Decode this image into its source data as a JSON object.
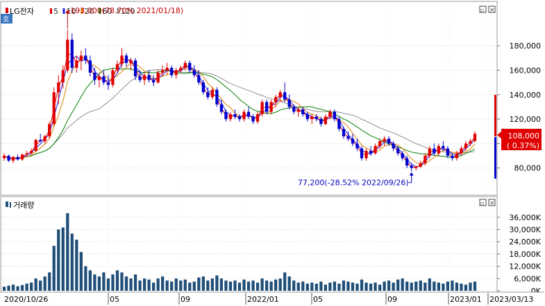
{
  "price_panel": {
    "stock_name": "LG전자",
    "ma_legend": [
      {
        "label": "5",
        "color": "#e00000"
      },
      {
        "label": "10",
        "color": "#2020e0"
      },
      {
        "label": "20",
        "color": "#e08000"
      },
      {
        "label": "60",
        "color": "#008000"
      },
      {
        "label": "120",
        "color": "#909090"
      }
    ],
    "side_tab": "호",
    "current_price": "108,000",
    "current_change": "( 0.37%)",
    "high_annotation": "193,000(78.70% 2021/01/18)",
    "low_annotation": "77,200(-28.52% 2022/09/26)"
  },
  "volume_panel": {
    "title": "거래량"
  },
  "window_buttons": {
    "restore": "▫",
    "close": "×"
  },
  "colors": {
    "up": "#e00000",
    "down": "#0000d0",
    "ma5": "#e00000",
    "ma10": "#2020e0",
    "ma20": "#e08000",
    "ma60": "#008000",
    "ma120": "#909090",
    "volume": "#1f4e79"
  },
  "chart_data": {
    "type": "candlestick",
    "x_tick_labels": [
      "2020/10/26",
      "05",
      "09",
      "2022/01",
      "05",
      "09",
      "2023/01",
      "2023/03/13"
    ],
    "price_axis": {
      "ticks": [
        "80,000",
        "100,000",
        "120,000",
        "140,000",
        "160,000",
        "180,000"
      ],
      "ylim": [
        60000,
        205000
      ]
    },
    "volume_axis": {
      "ticks": [
        "0K",
        "6,000K",
        "12,000K",
        "18,000K",
        "24,000K",
        "30,000K",
        "36,000K"
      ],
      "ylim": [
        0,
        40000000
      ]
    },
    "candles": [
      [
        88000,
        92000,
        86000,
        90000
      ],
      [
        90000,
        91000,
        85000,
        86000
      ],
      [
        86000,
        90000,
        84000,
        89000
      ],
      [
        89000,
        91000,
        86000,
        87000
      ],
      [
        87000,
        92000,
        86000,
        91000
      ],
      [
        91000,
        94000,
        90000,
        92000
      ],
      [
        92000,
        96000,
        91000,
        94000
      ],
      [
        94000,
        104000,
        93000,
        103000
      ],
      [
        103000,
        108000,
        101000,
        102000
      ],
      [
        102000,
        107000,
        100000,
        106000
      ],
      [
        106000,
        118000,
        104000,
        116000
      ],
      [
        116000,
        146000,
        114000,
        142000
      ],
      [
        142000,
        156000,
        132000,
        150000
      ],
      [
        150000,
        164000,
        145000,
        160000
      ],
      [
        160000,
        193000,
        158000,
        185000
      ],
      [
        185000,
        190000,
        158000,
        162000
      ],
      [
        162000,
        172000,
        158000,
        168000
      ],
      [
        168000,
        176000,
        160000,
        172000
      ],
      [
        172000,
        178000,
        165000,
        168000
      ],
      [
        168000,
        172000,
        155000,
        158000
      ],
      [
        158000,
        162000,
        148000,
        152000
      ],
      [
        152000,
        158000,
        146000,
        155000
      ],
      [
        155000,
        160000,
        148000,
        150000
      ],
      [
        150000,
        156000,
        144000,
        148000
      ],
      [
        148000,
        162000,
        146000,
        160000
      ],
      [
        160000,
        168000,
        158000,
        165000
      ],
      [
        165000,
        178000,
        162000,
        172000
      ],
      [
        172000,
        174000,
        163000,
        166000
      ],
      [
        166000,
        170000,
        160000,
        168000
      ],
      [
        168000,
        170000,
        152000,
        155000
      ],
      [
        155000,
        160000,
        150000,
        152000
      ],
      [
        152000,
        158000,
        148000,
        156000
      ],
      [
        156000,
        160000,
        150000,
        152000
      ],
      [
        152000,
        156000,
        147000,
        150000
      ],
      [
        150000,
        160000,
        149000,
        158000
      ],
      [
        158000,
        164000,
        155000,
        160000
      ],
      [
        160000,
        166000,
        156000,
        162000
      ],
      [
        162000,
        164000,
        154000,
        156000
      ],
      [
        156000,
        162000,
        153000,
        160000
      ],
      [
        160000,
        164000,
        158000,
        162000
      ],
      [
        162000,
        168000,
        160000,
        166000
      ],
      [
        166000,
        168000,
        158000,
        160000
      ],
      [
        160000,
        164000,
        154000,
        156000
      ],
      [
        156000,
        160000,
        148000,
        150000
      ],
      [
        150000,
        152000,
        140000,
        142000
      ],
      [
        142000,
        146000,
        136000,
        138000
      ],
      [
        138000,
        146000,
        136000,
        144000
      ],
      [
        144000,
        146000,
        130000,
        132000
      ],
      [
        132000,
        136000,
        124000,
        126000
      ],
      [
        126000,
        128000,
        118000,
        120000
      ],
      [
        120000,
        126000,
        118000,
        124000
      ],
      [
        124000,
        128000,
        120000,
        122000
      ],
      [
        122000,
        124000,
        118000,
        120000
      ],
      [
        120000,
        128000,
        118000,
        126000
      ],
      [
        126000,
        130000,
        120000,
        122000
      ],
      [
        122000,
        124000,
        116000,
        118000
      ],
      [
        118000,
        126000,
        116000,
        124000
      ],
      [
        124000,
        136000,
        122000,
        134000
      ],
      [
        134000,
        136000,
        124000,
        126000
      ],
      [
        126000,
        136000,
        124000,
        134000
      ],
      [
        134000,
        140000,
        130000,
        138000
      ],
      [
        138000,
        144000,
        134000,
        142000
      ],
      [
        142000,
        150000,
        134000,
        136000
      ],
      [
        136000,
        140000,
        128000,
        130000
      ],
      [
        130000,
        132000,
        124000,
        126000
      ],
      [
        126000,
        130000,
        122000,
        128000
      ],
      [
        128000,
        130000,
        122000,
        124000
      ],
      [
        124000,
        126000,
        118000,
        120000
      ],
      [
        120000,
        124000,
        116000,
        122000
      ],
      [
        122000,
        124000,
        118000,
        120000
      ],
      [
        120000,
        122000,
        114000,
        116000
      ],
      [
        116000,
        124000,
        115000,
        122000
      ],
      [
        122000,
        128000,
        120000,
        126000
      ],
      [
        126000,
        128000,
        118000,
        120000
      ],
      [
        120000,
        122000,
        110000,
        112000
      ],
      [
        112000,
        114000,
        104000,
        106000
      ],
      [
        106000,
        110000,
        102000,
        104000
      ],
      [
        104000,
        108000,
        98000,
        100000
      ],
      [
        100000,
        104000,
        94000,
        96000
      ],
      [
        96000,
        98000,
        86000,
        88000
      ],
      [
        88000,
        96000,
        86000,
        94000
      ],
      [
        94000,
        98000,
        90000,
        92000
      ],
      [
        92000,
        100000,
        91000,
        98000
      ],
      [
        98000,
        104000,
        96000,
        102000
      ],
      [
        102000,
        106000,
        98000,
        104000
      ],
      [
        104000,
        106000,
        98000,
        100000
      ],
      [
        100000,
        102000,
        94000,
        96000
      ],
      [
        96000,
        98000,
        90000,
        92000
      ],
      [
        92000,
        94000,
        86000,
        88000
      ],
      [
        88000,
        90000,
        80000,
        82000
      ],
      [
        82000,
        84000,
        77200,
        80000
      ],
      [
        80000,
        82000,
        78000,
        81000
      ],
      [
        81000,
        86000,
        80000,
        84000
      ],
      [
        84000,
        92000,
        82000,
        90000
      ],
      [
        90000,
        98000,
        88000,
        96000
      ],
      [
        96000,
        100000,
        90000,
        92000
      ],
      [
        92000,
        100000,
        90000,
        98000
      ],
      [
        98000,
        102000,
        94000,
        96000
      ],
      [
        96000,
        98000,
        88000,
        90000
      ],
      [
        90000,
        92000,
        86000,
        88000
      ],
      [
        88000,
        94000,
        86000,
        92000
      ],
      [
        92000,
        98000,
        90000,
        96000
      ],
      [
        96000,
        102000,
        94000,
        100000
      ],
      [
        100000,
        104000,
        98000,
        102000
      ],
      [
        102000,
        110000,
        101000,
        108000
      ]
    ],
    "volumes": [
      2000000,
      2500000,
      3000000,
      2200000,
      2800000,
      3500000,
      4000000,
      6000000,
      5000000,
      7000000,
      9000000,
      22000000,
      30000000,
      31000000,
      38000000,
      28000000,
      25000000,
      19000000,
      12000000,
      10000000,
      8000000,
      7000000,
      9000000,
      6000000,
      8000000,
      10000000,
      9000000,
      7000000,
      6000000,
      8000000,
      5000000,
      6000000,
      5500000,
      4000000,
      6000000,
      7000000,
      5000000,
      4500000,
      6000000,
      5000000,
      5500000,
      4000000,
      4500000,
      6500000,
      7000000,
      5000000,
      6000000,
      7500000,
      6000000,
      5000000,
      4500000,
      5000000,
      4000000,
      5500000,
      4500000,
      5000000,
      4000000,
      6000000,
      5000000,
      4500000,
      5500000,
      6000000,
      9000000,
      7000000,
      5000000,
      4000000,
      4500000,
      3500000,
      4000000,
      3500000,
      4500000,
      3000000,
      4000000,
      4500000,
      3500000,
      5000000,
      4500000,
      4000000,
      3500000,
      5500000,
      4000000,
      3500000,
      4000000,
      3000000,
      4500000,
      5000000,
      4000000,
      5500000,
      6000000,
      4500000,
      4000000,
      4500000,
      5000000,
      4000000,
      6000000,
      4500000,
      4000000,
      3500000,
      4500000,
      5000000,
      4000000,
      3500000,
      3000000,
      4000000,
      4500000
    ]
  }
}
